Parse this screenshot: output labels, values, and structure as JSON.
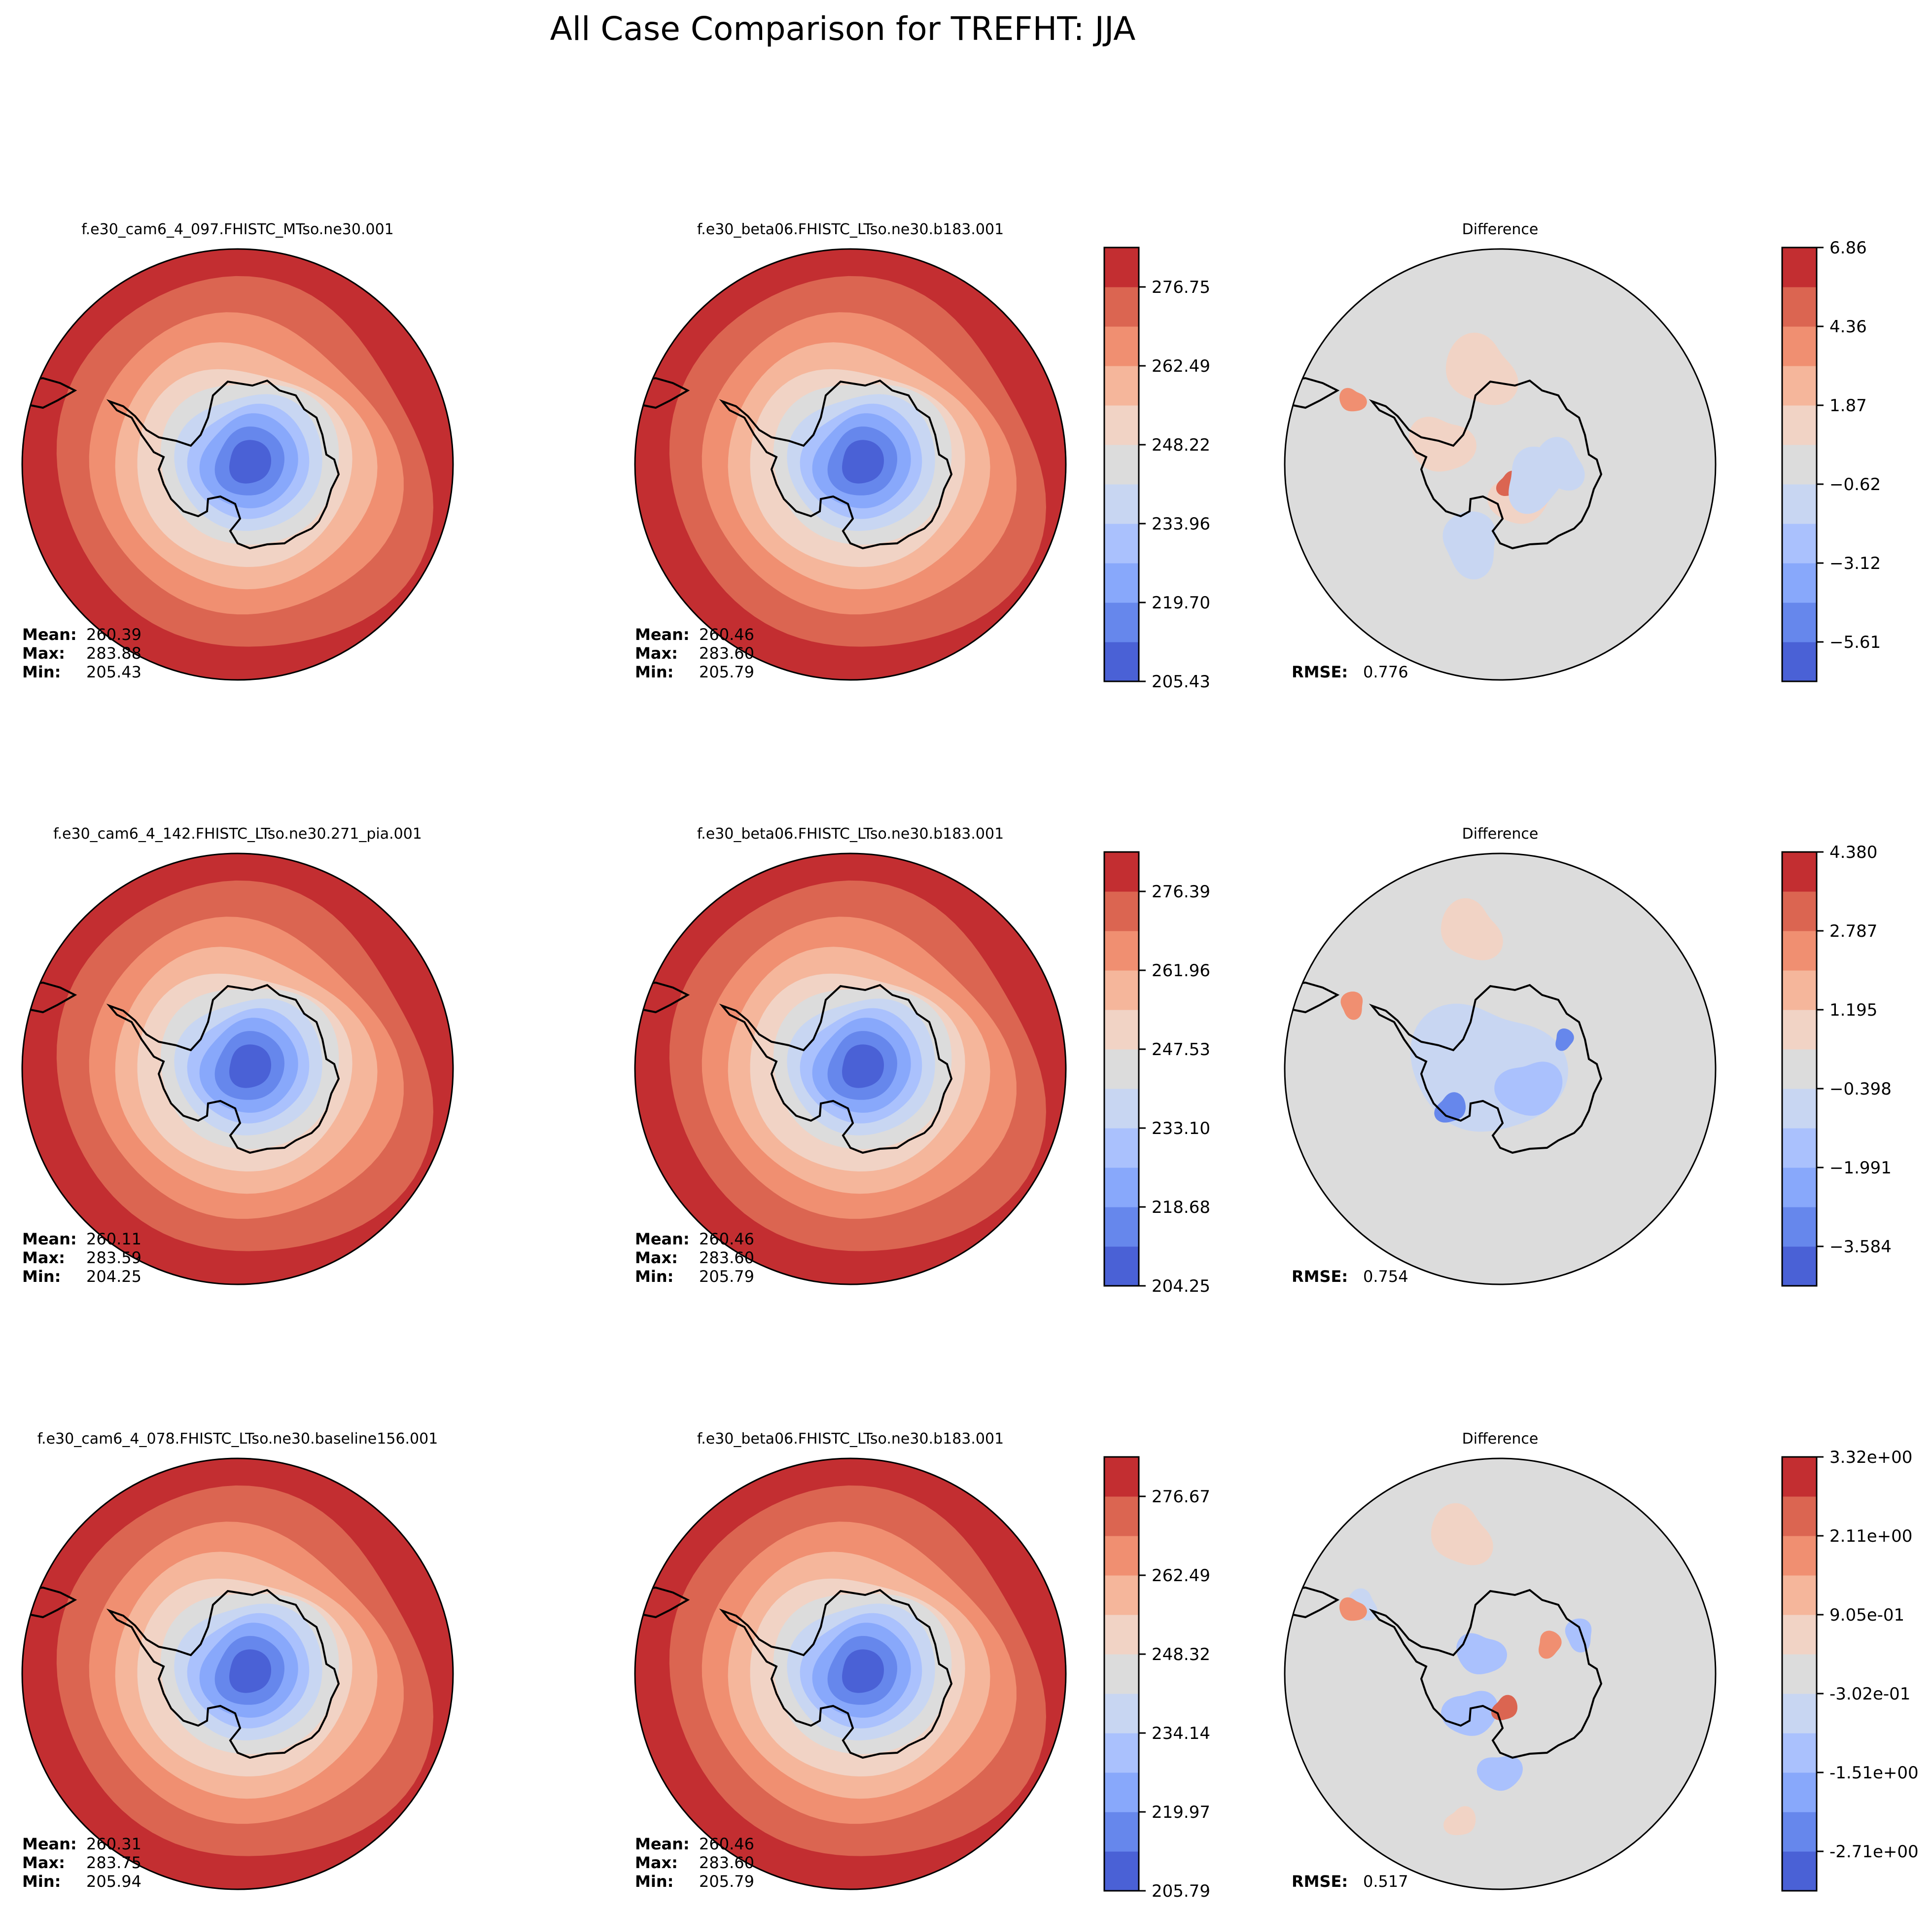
{
  "figure": {
    "title": "All Case Comparison for TREFHT: JJA"
  },
  "colors": {
    "cmap": [
      "#4a61d6",
      "#6687ec",
      "#88a8fb",
      "#aac1fd",
      "#c8d6f2",
      "#dcdcdc",
      "#f1d3c5",
      "#f5b69b",
      "#f08f71",
      "#db6551",
      "#c32e31"
    ],
    "coast": "#000000",
    "background": "#ffffff"
  },
  "chart_data": [
    {
      "type": "heatmap",
      "projection": "south-polar-stereographic",
      "title": "f.e30_cam6_4_097.FHISTC_MTso.ne30.001",
      "stats": [
        {
          "label": "Mean",
          "value": "260.39"
        },
        {
          "label": "Max",
          "value": "283.88"
        },
        {
          "label": "Min",
          "value": "205.43"
        }
      ],
      "style": "full"
    },
    {
      "type": "heatmap",
      "projection": "south-polar-stereographic",
      "title": "f.e30_beta06.FHISTC_LTso.ne30.b183.001",
      "stats": [
        {
          "label": "Mean",
          "value": "260.46"
        },
        {
          "label": "Max",
          "value": "283.60"
        },
        {
          "label": "Min",
          "value": "205.79"
        }
      ],
      "style": "full",
      "colorbar": {
        "levels": 11,
        "range": [
          205.43,
          283.88
        ],
        "ticks": [
          "205.43",
          "219.70",
          "233.96",
          "248.22",
          "262.49",
          "276.75"
        ],
        "tick_positions": [
          0,
          1.0,
          2.0,
          3.0,
          4.0,
          5.0
        ],
        "tick_step_levels": 2
      }
    },
    {
      "type": "heatmap",
      "projection": "south-polar-stereographic",
      "title": "Difference",
      "stats": [
        {
          "label": "RMSE",
          "value": "0.776"
        }
      ],
      "style": "diff1",
      "colorbar": {
        "levels": 11,
        "range": [
          -6.86,
          6.86
        ],
        "ticks": [
          "−5.61",
          "−3.12",
          "−0.62",
          "1.87",
          "4.36",
          "6.86"
        ],
        "tick_step_levels": 2,
        "top_label": true
      }
    },
    {
      "type": "heatmap",
      "projection": "south-polar-stereographic",
      "title": "f.e30_cam6_4_142.FHISTC_LTso.ne30.271_pia.001",
      "stats": [
        {
          "label": "Mean",
          "value": "260.11"
        },
        {
          "label": "Max",
          "value": "283.59"
        },
        {
          "label": "Min",
          "value": "204.25"
        }
      ],
      "style": "full"
    },
    {
      "type": "heatmap",
      "projection": "south-polar-stereographic",
      "title": "f.e30_beta06.FHISTC_LTso.ne30.b183.001",
      "stats": [
        {
          "label": "Mean",
          "value": "260.46"
        },
        {
          "label": "Max",
          "value": "283.60"
        },
        {
          "label": "Min",
          "value": "205.79"
        }
      ],
      "style": "full",
      "colorbar": {
        "levels": 11,
        "range": [
          204.25,
          283.59
        ],
        "ticks": [
          "204.25",
          "218.68",
          "233.10",
          "247.53",
          "261.96",
          "276.39"
        ],
        "tick_step_levels": 2
      }
    },
    {
      "type": "heatmap",
      "projection": "south-polar-stereographic",
      "title": "Difference",
      "stats": [
        {
          "label": "RMSE",
          "value": "0.754"
        }
      ],
      "style": "diff2",
      "colorbar": {
        "levels": 11,
        "range": [
          -4.38,
          4.38
        ],
        "ticks": [
          "−3.584",
          "−1.991",
          "−0.398",
          "1.195",
          "2.787",
          "4.380"
        ],
        "tick_step_levels": 2,
        "top_label": true
      }
    },
    {
      "type": "heatmap",
      "projection": "south-polar-stereographic",
      "title": "f.e30_cam6_4_078.FHISTC_LTso.ne30.baseline156.001",
      "stats": [
        {
          "label": "Mean",
          "value": "260.31"
        },
        {
          "label": "Max",
          "value": "283.75"
        },
        {
          "label": "Min",
          "value": "205.94"
        }
      ],
      "style": "full"
    },
    {
      "type": "heatmap",
      "projection": "south-polar-stereographic",
      "title": "f.e30_beta06.FHISTC_LTso.ne30.b183.001",
      "stats": [
        {
          "label": "Mean",
          "value": "260.46"
        },
        {
          "label": "Max",
          "value": "283.60"
        },
        {
          "label": "Min",
          "value": "205.79"
        }
      ],
      "style": "full",
      "colorbar": {
        "levels": 11,
        "range": [
          205.79,
          283.75
        ],
        "ticks": [
          "205.79",
          "219.97",
          "234.14",
          "248.32",
          "262.49",
          "276.67"
        ],
        "tick_step_levels": 2
      }
    },
    {
      "type": "heatmap",
      "projection": "south-polar-stereographic",
      "title": "Difference",
      "stats": [
        {
          "label": "RMSE",
          "value": "0.517"
        }
      ],
      "style": "diff3",
      "colorbar": {
        "levels": 11,
        "range": [
          -3.32,
          3.32
        ],
        "ticks": [
          "-2.71e+00",
          "-1.51e+00",
          "-3.02e-01",
          "9.05e-01",
          "2.11e+00",
          "3.32e+00"
        ],
        "tick_step_levels": 2,
        "top_label": true
      }
    }
  ]
}
